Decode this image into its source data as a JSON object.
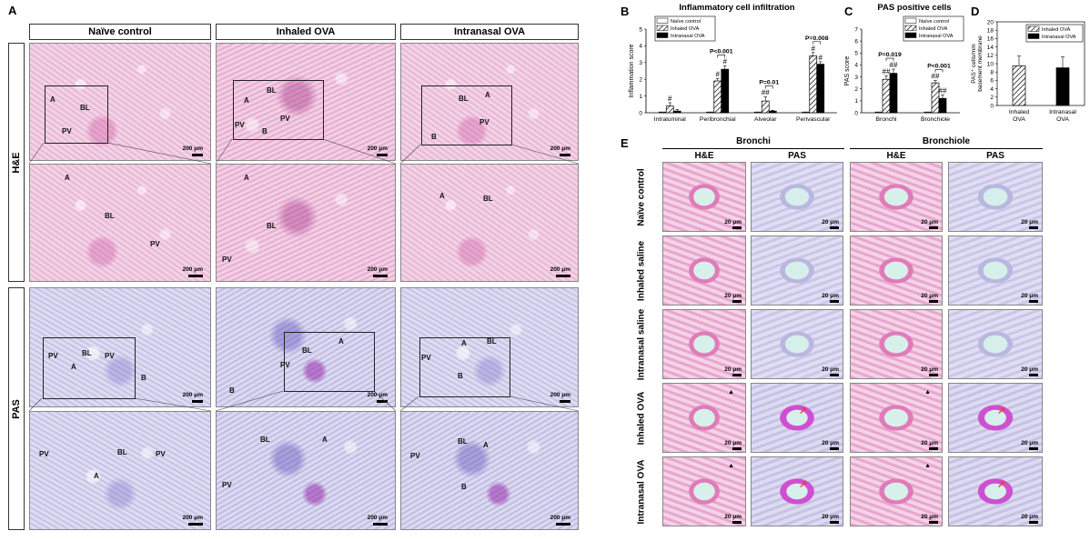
{
  "panel_a": {
    "label": "A",
    "columns": [
      "Naïve control",
      "Inhaled OVA",
      "Intranasal OVA"
    ],
    "rows": [
      "H&E",
      "PAS"
    ],
    "scale": "200 μm",
    "tissue_labels": {
      "he_low": [
        [
          "A",
          "BL",
          "PV"
        ],
        [
          "A",
          "BL",
          "PV",
          "PV",
          "B"
        ],
        [
          "BL",
          "A",
          "PV",
          "B"
        ]
      ],
      "he_high": [
        [
          "A",
          "BL",
          "PV"
        ],
        [
          "A",
          "BL",
          "PV"
        ],
        [
          "A",
          "BL"
        ]
      ],
      "pas_low": [
        [
          "PV",
          "BL",
          "PV",
          "A",
          "B"
        ],
        [
          "BL",
          "A",
          "PV",
          "B"
        ],
        [
          "A",
          "BL",
          "PV",
          "B"
        ]
      ],
      "pas_high": [
        [
          "PV",
          "BL",
          "PV",
          "A"
        ],
        [
          "BL",
          "A",
          "PV"
        ],
        [
          "PV",
          "BL",
          "A",
          "B"
        ]
      ]
    }
  },
  "panel_b": {
    "label": "B"
  },
  "panel_c": {
    "label": "C"
  },
  "panel_d": {
    "label": "D"
  },
  "panel_e": {
    "label": "E",
    "groups": [
      "Bronchi",
      "Bronchiole"
    ],
    "stains": [
      "H&E",
      "PAS",
      "H&E",
      "PAS"
    ],
    "rows": [
      "Naïve control",
      "Inhaled saline",
      "Intranasal saline",
      "Inhaled OVA",
      "Intranasal OVA"
    ],
    "scale": "20 μm"
  },
  "chart_data": [
    {
      "type": "bar",
      "title": "Inflammatory cell infiltration",
      "ylabel": "Inflammation score",
      "ylim": [
        0,
        5
      ],
      "yticks": [
        0,
        1,
        2,
        3,
        4,
        5
      ],
      "categories": [
        "Intraluminal",
        "Peribronchial",
        "Alveolar",
        "Perivascular"
      ],
      "series": [
        {
          "name": "Naïve control",
          "values": [
            0.0,
            0.0,
            0.0,
            0.0
          ],
          "errors": [
            0,
            0,
            0,
            0
          ]
        },
        {
          "name": "Inhaled OVA",
          "values": [
            0.4,
            1.9,
            0.7,
            3.4
          ],
          "errors": [
            0.2,
            0.15,
            0.25,
            0.2
          ]
        },
        {
          "name": "Intranasal OVA",
          "values": [
            0.1,
            2.6,
            0.1,
            2.9
          ],
          "errors": [
            0.1,
            0.2,
            0.05,
            0.15
          ]
        }
      ],
      "annotations": [
        {
          "category": "Intraluminal",
          "series": "Inhaled OVA",
          "text": "#"
        },
        {
          "category": "Peribronchial",
          "series": "Inhaled OVA",
          "text": "#"
        },
        {
          "category": "Peribronchial",
          "series": "Intranasal OVA",
          "text": "#"
        },
        {
          "category": "Alveolar",
          "series": "Inhaled OVA",
          "text": "##"
        },
        {
          "category": "Perivascular",
          "series": "Inhaled OVA",
          "text": "#"
        },
        {
          "category": "Perivascular",
          "series": "Intranasal OVA",
          "text": "#"
        }
      ],
      "pvalues": [
        {
          "category": "Peribronchial",
          "text": "P<0.001"
        },
        {
          "category": "Alveolar",
          "text": "P=0.01"
        },
        {
          "category": "Perivascular",
          "text": "P=0.008"
        }
      ],
      "legend": "top-left"
    },
    {
      "type": "bar",
      "title": "PAS positive cells",
      "ylabel": "PAS score",
      "ylim": [
        0,
        7
      ],
      "yticks": [
        0,
        1,
        2,
        3,
        4,
        5,
        6,
        7
      ],
      "categories": [
        "Bronchi",
        "Bronchiole"
      ],
      "series": [
        {
          "name": "Naïve control",
          "values": [
            0.0,
            0.0
          ],
          "errors": [
            0,
            0
          ]
        },
        {
          "name": "Inhaled OVA",
          "values": [
            2.8,
            2.5
          ],
          "errors": [
            0.3,
            0.2
          ]
        },
        {
          "name": "Intranasal OVA",
          "values": [
            3.3,
            1.2
          ],
          "errors": [
            0.35,
            0.3
          ]
        }
      ],
      "annotations": [
        {
          "category": "Bronchi",
          "series": "Inhaled OVA",
          "text": "##"
        },
        {
          "category": "Bronchi",
          "series": "Intranasal OVA",
          "text": "##"
        },
        {
          "category": "Bronchiole",
          "series": "Inhaled OVA",
          "text": "##"
        },
        {
          "category": "Bronchiole",
          "series": "Intranasal OVA",
          "text": "##"
        }
      ],
      "pvalues": [
        {
          "category": "Bronchi",
          "text": "P=0.019"
        },
        {
          "category": "Bronchiole",
          "text": "P<0.001"
        }
      ],
      "legend": "top-right"
    },
    {
      "type": "bar",
      "title": "",
      "ylabel": "PAS⁺ cells/mm basement membrane",
      "ylim": [
        0,
        20
      ],
      "yticks": [
        0,
        2,
        4,
        6,
        8,
        10,
        12,
        14,
        16,
        18,
        20
      ],
      "categories": [
        "Inhaled OVA",
        "Intranasal OVA"
      ],
      "series": [
        {
          "name": "Inhaled OVA",
          "values": [
            9.5,
            null
          ],
          "errors": [
            2.3,
            null
          ]
        },
        {
          "name": "Intranasal OVA",
          "values": [
            null,
            9.0
          ],
          "errors": [
            null,
            2.6
          ]
        }
      ],
      "legend": "top-right"
    }
  ]
}
